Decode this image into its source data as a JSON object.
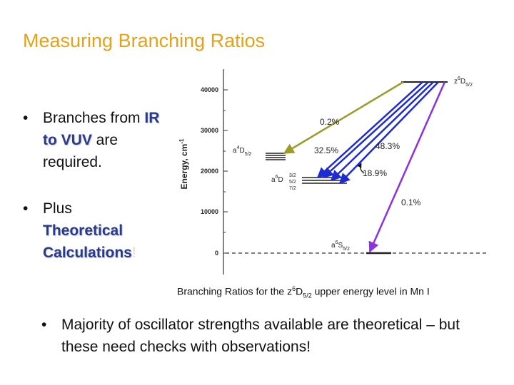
{
  "slide": {
    "title": "Measuring Branching Ratios",
    "bullet_char": "•",
    "bullet1": {
      "pre": "Branches from ",
      "emph": "IR to VUV",
      "post": " are required."
    },
    "bullet2": {
      "pre": "Plus ",
      "emph": "Theoretical Calculations",
      "post": "!"
    },
    "caption": {
      "pre": "Branching Ratios for the z",
      "sup": "6",
      "mid": "D",
      "sub": "5/2",
      "post": " upper energy level in Mn I"
    },
    "bullet3": "Majority of oscillator strengths available are theoretical – but these need checks with observations!"
  },
  "diagram": {
    "y_axis_label": "Energy, cm",
    "y_axis_exp": "-1",
    "ticks": [
      "0",
      "10000",
      "20000",
      "30000",
      "40000"
    ],
    "levels": {
      "upper": {
        "main": "z",
        "sup": "6",
        "rest": "D",
        "sub": "5/2"
      },
      "a4D": {
        "main": "a",
        "sup": "4",
        "rest": "D",
        "sub": "5/2"
      },
      "a6D": {
        "main": "a",
        "sup": "6",
        "rest": "D",
        "subs": [
          "3/2",
          "5/2",
          "7/2"
        ]
      },
      "a6S": {
        "main": "a",
        "sup": "6",
        "rest": "S",
        "sub": "5/2"
      }
    },
    "ratios": [
      "0.2%",
      "32.5%",
      "48.3%",
      "18.9%",
      "0.1%"
    ],
    "colors": {
      "olive": "#9b9a2a",
      "blue": "#1d2bd6",
      "purple": "#8e2fe0",
      "axis": "#333333"
    }
  }
}
